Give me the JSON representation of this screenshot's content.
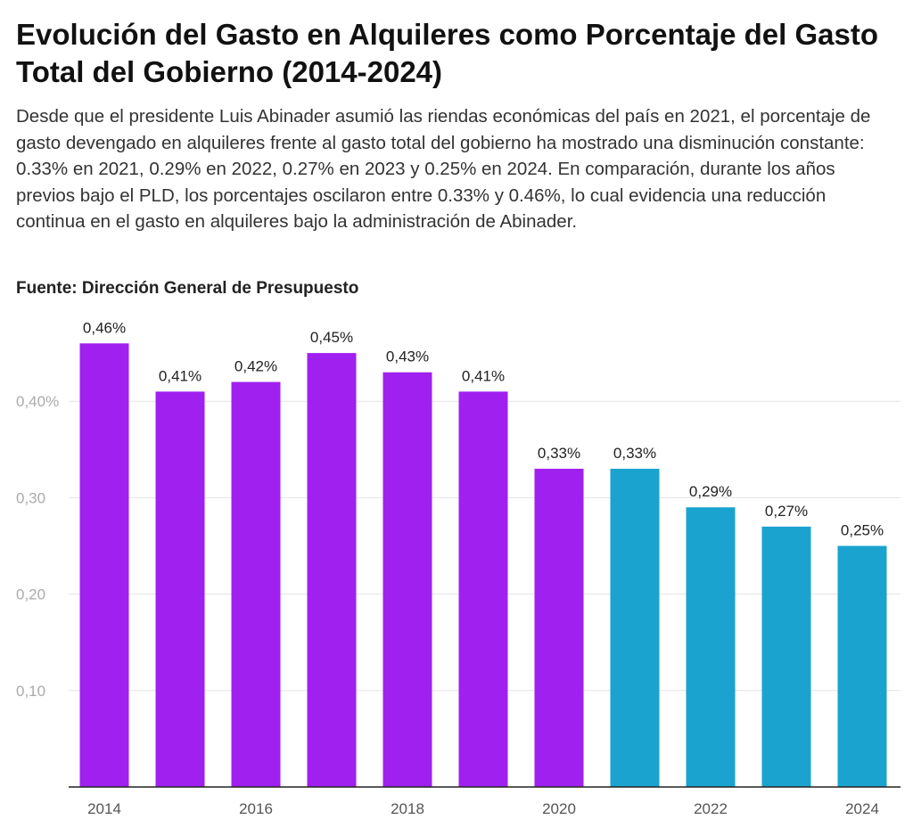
{
  "title": "Evolución del Gasto en Alquileres como Porcentaje del Gasto Total del Gobierno (2014-2024)",
  "description": "Desde que el presidente Luis Abinader asumió las riendas económicas del país en 2021, el porcentaje de gasto devengado en alquileres frente al gasto total del gobierno ha mostrado una disminución constante: 0.33% en 2021, 0.29% en 2022, 0.27% en 2023 y 0.25% en 2024. En comparación, durante los años previos bajo el PLD, los porcentajes oscilaron entre 0.33% y 0.46%, lo cual evidencia una reducción continua en el gasto en alquileres bajo la administración de Abinader.",
  "source": "Fuente: Dirección General de Presupuesto",
  "chart_data": {
    "type": "bar",
    "categories": [
      "2014",
      "2015",
      "2016",
      "2017",
      "2018",
      "2019",
      "2020",
      "2021",
      "2022",
      "2023",
      "2024"
    ],
    "values": [
      0.46,
      0.41,
      0.42,
      0.45,
      0.43,
      0.41,
      0.33,
      0.33,
      0.29,
      0.27,
      0.25
    ],
    "data_labels": [
      "0,46%",
      "0,41%",
      "0,42%",
      "0,45%",
      "0,43%",
      "0,41%",
      "0,33%",
      "0,33%",
      "0,29%",
      "0,27%",
      "0,25%"
    ],
    "bar_colors": [
      "#a020f0",
      "#a020f0",
      "#a020f0",
      "#a020f0",
      "#a020f0",
      "#a020f0",
      "#a020f0",
      "#1aa3cf",
      "#1aa3cf",
      "#1aa3cf",
      "#1aa3cf"
    ],
    "x_tick_labels": [
      "2014",
      "2016",
      "2018",
      "2020",
      "2022",
      "2024"
    ],
    "y_ticks": [
      0.1,
      0.2,
      0.3,
      0.4
    ],
    "y_tick_labels": [
      "0,10",
      "0,20",
      "0,30",
      "0,40%"
    ],
    "ylim": [
      0,
      0.5
    ],
    "grid": true,
    "colors": {
      "purple": "#a020f0",
      "blue": "#1aa3cf",
      "grid": "#e3e3e3",
      "axis": "#222222",
      "tick_text": "#aaaaaa"
    }
  }
}
